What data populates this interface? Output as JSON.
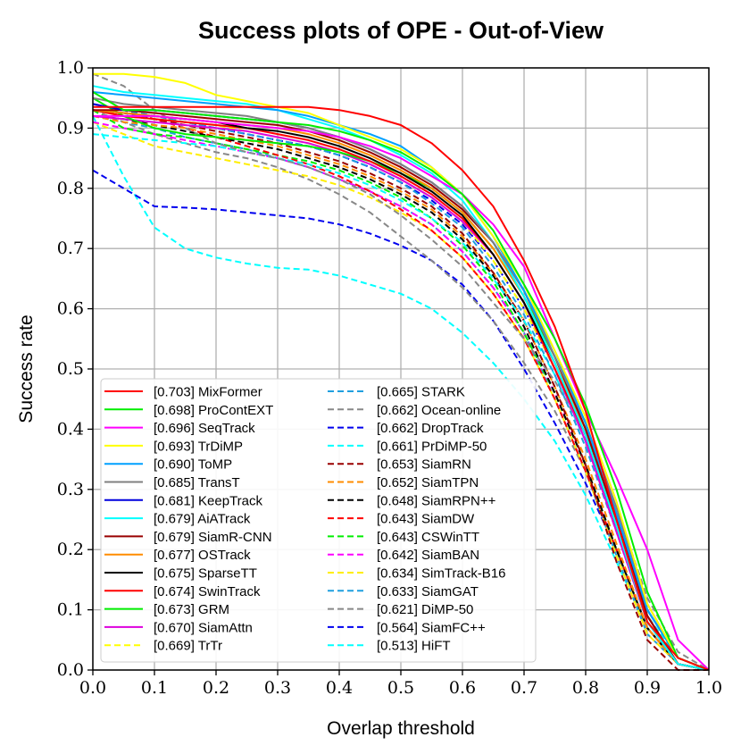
{
  "chart_data": {
    "type": "line",
    "title": "Success plots of OPE - Out-of-View",
    "xlabel": "Overlap threshold",
    "ylabel": "Success rate",
    "xlim": [
      0,
      1
    ],
    "ylim": [
      0,
      1
    ],
    "grid": true,
    "legend_position": "lower-left",
    "x": [
      0,
      0.05,
      0.1,
      0.15,
      0.2,
      0.25,
      0.3,
      0.35,
      0.4,
      0.45,
      0.5,
      0.55,
      0.6,
      0.65,
      0.7,
      0.75,
      0.8,
      0.85,
      0.9,
      0.95,
      1.0
    ],
    "xticks": [
      "0.0",
      "0.1",
      "0.2",
      "0.3",
      "0.4",
      "0.5",
      "0.6",
      "0.7",
      "0.8",
      "0.9",
      "1.0"
    ],
    "yticks": [
      "0.0",
      "0.1",
      "0.2",
      "0.3",
      "0.4",
      "0.5",
      "0.6",
      "0.7",
      "0.8",
      "0.9",
      "1.0"
    ],
    "series": [
      {
        "name": "[0.703] MixFormer",
        "color": "#ff0000",
        "dash": "solid",
        "values": [
          0.935,
          0.935,
          0.935,
          0.935,
          0.935,
          0.935,
          0.935,
          0.935,
          0.93,
          0.92,
          0.905,
          0.875,
          0.83,
          0.77,
          0.68,
          0.57,
          0.43,
          0.25,
          0.08,
          0.02,
          0.0
        ]
      },
      {
        "name": "[0.698] ProContEXT",
        "color": "#00ee00",
        "dash": "solid",
        "values": [
          0.96,
          0.93,
          0.93,
          0.925,
          0.92,
          0.915,
          0.91,
          0.905,
          0.895,
          0.88,
          0.86,
          0.83,
          0.79,
          0.73,
          0.64,
          0.55,
          0.44,
          0.3,
          0.13,
          0.02,
          0.0
        ]
      },
      {
        "name": "[0.696] SeqTrack",
        "color": "#ff00ff",
        "dash": "solid",
        "values": [
          0.92,
          0.92,
          0.92,
          0.915,
          0.91,
          0.905,
          0.9,
          0.895,
          0.885,
          0.87,
          0.85,
          0.82,
          0.79,
          0.74,
          0.67,
          0.55,
          0.43,
          0.32,
          0.2,
          0.05,
          0.0
        ]
      },
      {
        "name": "[0.693] TrDiMP",
        "color": "#ffff00",
        "dash": "solid",
        "values": [
          0.99,
          0.99,
          0.985,
          0.975,
          0.955,
          0.945,
          0.935,
          0.925,
          0.905,
          0.885,
          0.865,
          0.835,
          0.79,
          0.72,
          0.64,
          0.53,
          0.42,
          0.28,
          0.11,
          0.02,
          0.0
        ]
      },
      {
        "name": "[0.690] ToMP",
        "color": "#00a0ff",
        "dash": "solid",
        "values": [
          0.96,
          0.955,
          0.95,
          0.945,
          0.94,
          0.935,
          0.93,
          0.92,
          0.905,
          0.89,
          0.87,
          0.835,
          0.79,
          0.72,
          0.63,
          0.53,
          0.41,
          0.26,
          0.1,
          0.02,
          0.0
        ]
      },
      {
        "name": "[0.685] TransT",
        "color": "#808080",
        "dash": "solid",
        "values": [
          0.95,
          0.94,
          0.935,
          0.93,
          0.925,
          0.92,
          0.91,
          0.9,
          0.885,
          0.865,
          0.84,
          0.81,
          0.77,
          0.71,
          0.63,
          0.52,
          0.41,
          0.27,
          0.11,
          0.02,
          0.0
        ]
      },
      {
        "name": "[0.681] KeepTrack",
        "color": "#0000dd",
        "dash": "solid",
        "values": [
          0.94,
          0.93,
          0.93,
          0.925,
          0.92,
          0.915,
          0.91,
          0.9,
          0.885,
          0.865,
          0.84,
          0.81,
          0.77,
          0.71,
          0.63,
          0.52,
          0.41,
          0.26,
          0.1,
          0.02,
          0.0
        ]
      },
      {
        "name": "[0.679] AiATrack",
        "color": "#00ffff",
        "dash": "solid",
        "values": [
          0.97,
          0.96,
          0.955,
          0.95,
          0.945,
          0.94,
          0.93,
          0.915,
          0.9,
          0.88,
          0.855,
          0.825,
          0.78,
          0.71,
          0.62,
          0.51,
          0.39,
          0.24,
          0.08,
          0.01,
          0.0
        ]
      },
      {
        "name": "[0.679] SiamR-CNN",
        "color": "#990000",
        "dash": "solid",
        "values": [
          0.93,
          0.93,
          0.925,
          0.92,
          0.915,
          0.91,
          0.905,
          0.895,
          0.88,
          0.86,
          0.835,
          0.805,
          0.765,
          0.71,
          0.63,
          0.52,
          0.4,
          0.25,
          0.09,
          0.01,
          0.0
        ]
      },
      {
        "name": "[0.677] OSTrack",
        "color": "#ff8c00",
        "dash": "solid",
        "values": [
          0.93,
          0.925,
          0.92,
          0.915,
          0.91,
          0.905,
          0.9,
          0.89,
          0.875,
          0.855,
          0.83,
          0.8,
          0.76,
          0.7,
          0.62,
          0.51,
          0.4,
          0.25,
          0.09,
          0.01,
          0.0
        ]
      },
      {
        "name": "[0.675] SparseTT",
        "color": "#000000",
        "dash": "solid",
        "values": [
          0.93,
          0.925,
          0.92,
          0.915,
          0.91,
          0.9,
          0.895,
          0.885,
          0.87,
          0.85,
          0.825,
          0.795,
          0.755,
          0.69,
          0.61,
          0.51,
          0.39,
          0.24,
          0.09,
          0.01,
          0.0
        ]
      },
      {
        "name": "[0.674] SwinTrack",
        "color": "#ff0000",
        "dash": "solid",
        "values": [
          0.93,
          0.92,
          0.915,
          0.91,
          0.905,
          0.9,
          0.89,
          0.88,
          0.865,
          0.845,
          0.82,
          0.79,
          0.75,
          0.69,
          0.61,
          0.5,
          0.39,
          0.24,
          0.09,
          0.01,
          0.0
        ]
      },
      {
        "name": "[0.673] GRM",
        "color": "#00ee00",
        "dash": "solid",
        "values": [
          0.95,
          0.92,
          0.9,
          0.89,
          0.885,
          0.88,
          0.875,
          0.87,
          0.86,
          0.845,
          0.825,
          0.8,
          0.76,
          0.7,
          0.62,
          0.52,
          0.4,
          0.25,
          0.1,
          0.02,
          0.0
        ]
      },
      {
        "name": "[0.670] SiamAttn",
        "color": "#dd00dd",
        "dash": "solid",
        "values": [
          0.92,
          0.915,
          0.91,
          0.905,
          0.9,
          0.895,
          0.885,
          0.875,
          0.86,
          0.84,
          0.815,
          0.785,
          0.745,
          0.69,
          0.61,
          0.5,
          0.38,
          0.23,
          0.08,
          0.01,
          0.0
        ]
      },
      {
        "name": "[0.669] TrTr",
        "color": "#ffff00",
        "dash": "dashed",
        "values": [
          0.93,
          0.92,
          0.915,
          0.91,
          0.905,
          0.895,
          0.885,
          0.875,
          0.86,
          0.84,
          0.815,
          0.785,
          0.745,
          0.68,
          0.6,
          0.5,
          0.38,
          0.23,
          0.08,
          0.01,
          0.0
        ]
      },
      {
        "name": "[0.665] STARK",
        "color": "#1f9fdf",
        "dash": "dashed",
        "values": [
          0.94,
          0.93,
          0.92,
          0.91,
          0.9,
          0.89,
          0.88,
          0.87,
          0.855,
          0.835,
          0.81,
          0.775,
          0.735,
          0.67,
          0.59,
          0.49,
          0.37,
          0.23,
          0.08,
          0.01,
          0.0
        ]
      },
      {
        "name": "[0.662] Ocean-online",
        "color": "#888888",
        "dash": "dashed",
        "values": [
          0.99,
          0.97,
          0.93,
          0.9,
          0.875,
          0.86,
          0.85,
          0.835,
          0.815,
          0.79,
          0.755,
          0.715,
          0.67,
          0.61,
          0.55,
          0.48,
          0.39,
          0.27,
          0.12,
          0.03,
          0.0
        ]
      },
      {
        "name": "[0.662] DropTrack",
        "color": "#0000ee",
        "dash": "dashed",
        "values": [
          0.93,
          0.925,
          0.915,
          0.91,
          0.9,
          0.89,
          0.88,
          0.87,
          0.855,
          0.835,
          0.81,
          0.78,
          0.74,
          0.68,
          0.6,
          0.5,
          0.38,
          0.23,
          0.08,
          0.01,
          0.0
        ]
      },
      {
        "name": "[0.661] PrDiMP-50",
        "color": "#00ffff",
        "dash": "dashed",
        "values": [
          0.89,
          0.885,
          0.88,
          0.875,
          0.87,
          0.86,
          0.85,
          0.84,
          0.825,
          0.805,
          0.78,
          0.75,
          0.71,
          0.65,
          0.58,
          0.49,
          0.38,
          0.24,
          0.09,
          0.02,
          0.0
        ]
      },
      {
        "name": "[0.653] SiamRN",
        "color": "#990000",
        "dash": "dashed",
        "values": [
          0.93,
          0.92,
          0.915,
          0.905,
          0.895,
          0.885,
          0.875,
          0.86,
          0.845,
          0.825,
          0.8,
          0.77,
          0.725,
          0.66,
          0.58,
          0.47,
          0.34,
          0.18,
          0.05,
          0.0,
          0.0
        ]
      },
      {
        "name": "[0.652] SiamTPN",
        "color": "#ff8c00",
        "dash": "dashed",
        "values": [
          0.92,
          0.91,
          0.905,
          0.9,
          0.89,
          0.88,
          0.87,
          0.855,
          0.84,
          0.82,
          0.795,
          0.765,
          0.72,
          0.66,
          0.58,
          0.47,
          0.35,
          0.21,
          0.07,
          0.01,
          0.0
        ]
      },
      {
        "name": "[0.648] SiamRPN++",
        "color": "#000000",
        "dash": "dashed",
        "values": [
          0.92,
          0.915,
          0.905,
          0.895,
          0.885,
          0.875,
          0.865,
          0.85,
          0.835,
          0.815,
          0.79,
          0.76,
          0.715,
          0.655,
          0.57,
          0.46,
          0.34,
          0.2,
          0.07,
          0.01,
          0.0
        ]
      },
      {
        "name": "[0.643] SiamDW",
        "color": "#ff0000",
        "dash": "dashed",
        "values": [
          0.94,
          0.93,
          0.915,
          0.9,
          0.885,
          0.87,
          0.855,
          0.84,
          0.82,
          0.795,
          0.765,
          0.73,
          0.685,
          0.625,
          0.55,
          0.45,
          0.33,
          0.2,
          0.07,
          0.01,
          0.0
        ]
      },
      {
        "name": "[0.643] CSWinTT",
        "color": "#00ee00",
        "dash": "dashed",
        "values": [
          0.93,
          0.9,
          0.89,
          0.885,
          0.875,
          0.865,
          0.855,
          0.845,
          0.83,
          0.81,
          0.785,
          0.75,
          0.705,
          0.645,
          0.56,
          0.46,
          0.34,
          0.2,
          0.07,
          0.01,
          0.0
        ]
      },
      {
        "name": "[0.642] SiamBAN",
        "color": "#ff00ff",
        "dash": "dashed",
        "values": [
          0.91,
          0.9,
          0.89,
          0.88,
          0.87,
          0.86,
          0.85,
          0.835,
          0.815,
          0.795,
          0.77,
          0.74,
          0.695,
          0.635,
          0.56,
          0.46,
          0.34,
          0.2,
          0.07,
          0.01,
          0.0
        ]
      },
      {
        "name": "[0.634] SimTrack-B16",
        "color": "#ffee00",
        "dash": "dashed",
        "values": [
          0.91,
          0.89,
          0.87,
          0.86,
          0.85,
          0.84,
          0.83,
          0.82,
          0.805,
          0.785,
          0.76,
          0.73,
          0.685,
          0.625,
          0.55,
          0.45,
          0.33,
          0.19,
          0.06,
          0.01,
          0.0
        ]
      },
      {
        "name": "[0.633] SiamGAT",
        "color": "#1f9fdf",
        "dash": "dashed",
        "values": [
          0.92,
          0.91,
          0.9,
          0.885,
          0.875,
          0.865,
          0.85,
          0.835,
          0.815,
          0.795,
          0.77,
          0.74,
          0.695,
          0.635,
          0.56,
          0.45,
          0.33,
          0.19,
          0.06,
          0.01,
          0.0
        ]
      },
      {
        "name": "[0.621] DiMP-50",
        "color": "#888888",
        "dash": "dashed",
        "values": [
          0.93,
          0.91,
          0.89,
          0.875,
          0.86,
          0.85,
          0.835,
          0.815,
          0.79,
          0.76,
          0.72,
          0.68,
          0.635,
          0.58,
          0.51,
          0.43,
          0.33,
          0.2,
          0.07,
          0.01,
          0.0
        ]
      },
      {
        "name": "[0.564] SiamFC++",
        "color": "#0000ee",
        "dash": "dashed",
        "values": [
          0.83,
          0.8,
          0.77,
          0.768,
          0.765,
          0.76,
          0.755,
          0.75,
          0.74,
          0.725,
          0.705,
          0.68,
          0.64,
          0.58,
          0.5,
          0.41,
          0.31,
          0.2,
          0.07,
          0.01,
          0.0
        ]
      },
      {
        "name": "[0.513] HiFT",
        "color": "#00ffff",
        "dash": "dashed",
        "values": [
          0.92,
          0.82,
          0.735,
          0.7,
          0.685,
          0.675,
          0.668,
          0.665,
          0.655,
          0.64,
          0.625,
          0.6,
          0.56,
          0.51,
          0.45,
          0.38,
          0.29,
          0.18,
          0.07,
          0.01,
          0.0
        ]
      }
    ]
  }
}
